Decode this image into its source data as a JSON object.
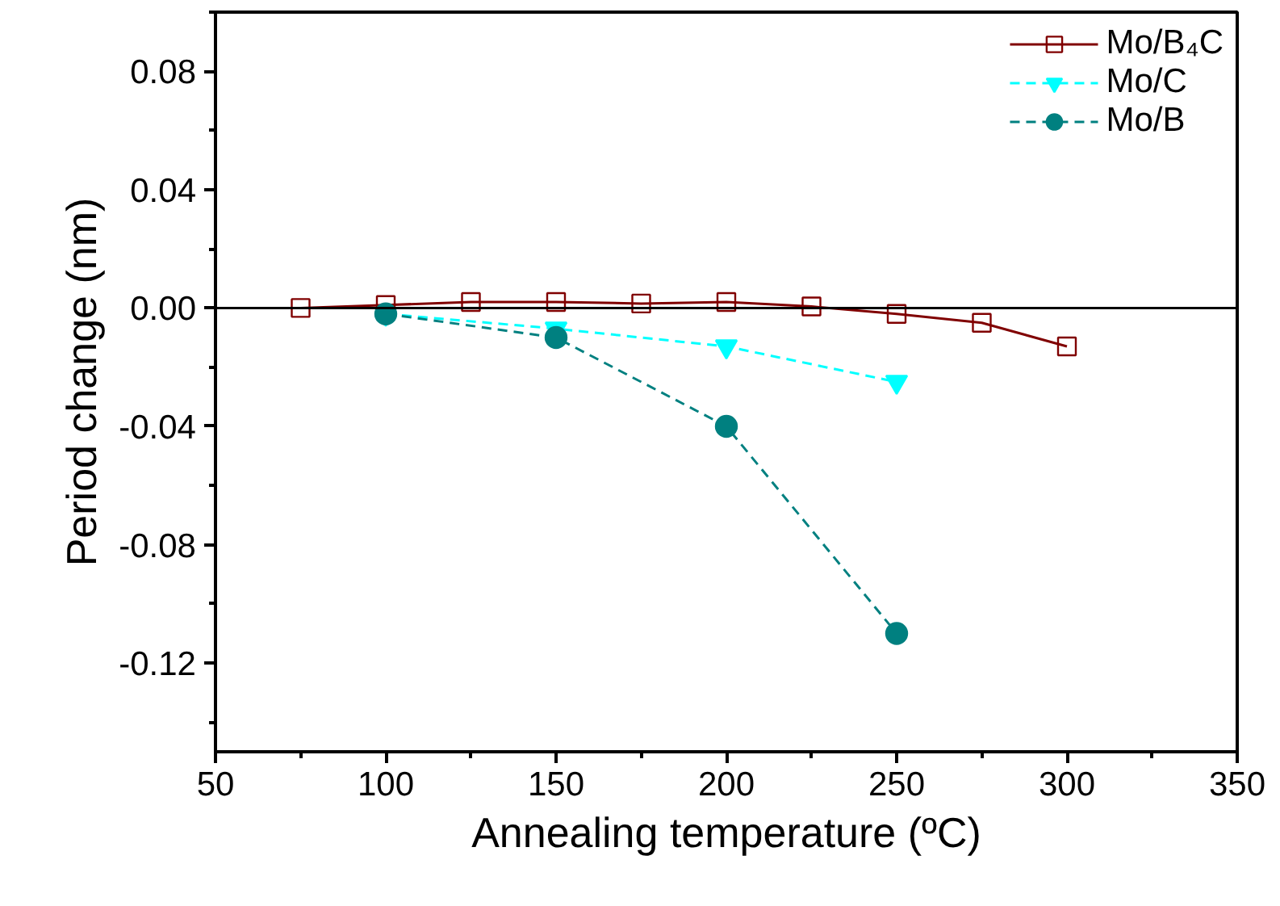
{
  "chart_data": {
    "type": "line",
    "xlabel": "Annealing temperature (ºC)",
    "ylabel": "Period change (nm)",
    "xlim": [
      50,
      350
    ],
    "xticks": [
      50,
      100,
      150,
      200,
      250,
      300,
      350
    ],
    "ylim": [
      -0.15,
      0.1
    ],
    "yticks": [
      {
        "value": -0.12,
        "label": "-0.12"
      },
      {
        "value": -0.08,
        "label": "-0.08"
      },
      {
        "value": -0.04,
        "label": "-0.04"
      },
      {
        "value": 0.0,
        "label": "0.00"
      },
      {
        "value": 0.04,
        "label": "0.04"
      },
      {
        "value": 0.08,
        "label": "0.08"
      }
    ],
    "grid": false,
    "legend": "top right",
    "ref_lines": [
      {
        "axis": "y",
        "value": 0,
        "color": "#000000"
      }
    ],
    "series": [
      {
        "name": "Mo/B₄C",
        "color": "#800000",
        "marker": "square",
        "line_style": "solid",
        "x": [
          75,
          100,
          125,
          150,
          175,
          200,
          225,
          250,
          275,
          300
        ],
        "values": [
          0.0,
          0.001,
          0.002,
          0.002,
          0.0015,
          0.002,
          0.0005,
          -0.002,
          -0.005,
          -0.013
        ]
      },
      {
        "name": "Mo/C",
        "color": "#00ffff",
        "marker": "triangle",
        "line_style": "dashed",
        "x": [
          100,
          150,
          200,
          250
        ],
        "values": [
          -0.002,
          -0.007,
          -0.013,
          -0.025
        ]
      },
      {
        "name": "Mo/B",
        "color": "#008080",
        "marker": "circle",
        "line_style": "dashed",
        "x": [
          100,
          150,
          200,
          250
        ],
        "values": [
          -0.002,
          -0.01,
          -0.04,
          -0.11
        ]
      }
    ]
  }
}
